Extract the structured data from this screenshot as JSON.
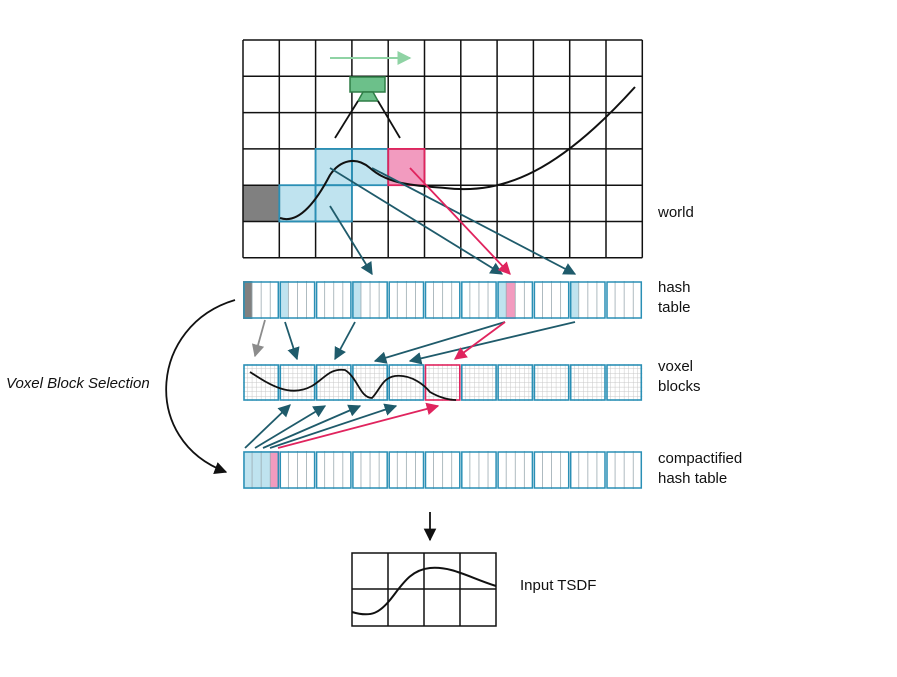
{
  "labels": {
    "world": "world",
    "hash_table_line1": "hash",
    "hash_table_line2": "table",
    "voxel_blocks_line1": "voxel",
    "voxel_blocks_line2": "blocks",
    "compact_line1": "compactified",
    "compact_line2": "hash table",
    "input_tsdf": "Input TSDF",
    "voxel_block_selection": "Voxel Block Selection"
  },
  "colors": {
    "grid_line": "#111111",
    "selected_fill": "#bfe3ef",
    "selected_stroke": "#2a8fb5",
    "pink_fill": "#f29bbf",
    "pink_stroke": "#e0245e",
    "gray_fill": "#808080",
    "teal_arrow": "#1f5b6b",
    "red_arrow": "#e0245e",
    "gray_arrow": "#8c8c8c",
    "camera_fill": "#6cc08a",
    "camera_stroke": "#2e7d46",
    "motion_arrow": "#8fd3a4",
    "bucket_border": "#2a8fb5"
  },
  "icons": {
    "camera": "camera-icon",
    "motion": "motion-arrow-icon"
  }
}
